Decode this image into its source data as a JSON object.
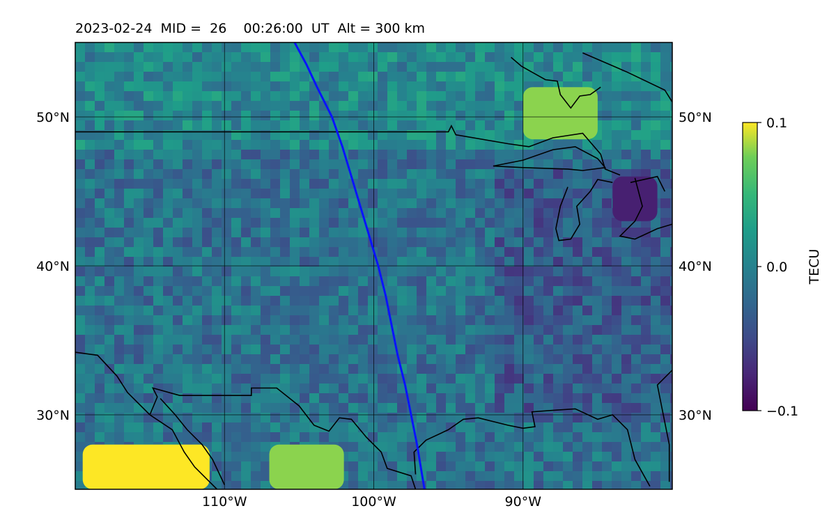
{
  "title": "2023-02-24  MID =  26    00:26:00  UT  Alt = 300 km",
  "chart_data": {
    "type": "heatmap",
    "xlim": [
      -120,
      -80
    ],
    "ylim": [
      25,
      55
    ],
    "lon_ticks": [
      {
        "value": -110,
        "label": "110°W"
      },
      {
        "value": -100,
        "label": "100°W"
      },
      {
        "value": -90,
        "label": "90°W"
      }
    ],
    "lat_ticks": [
      {
        "value": 50,
        "label": "50°N"
      },
      {
        "value": 40,
        "label": "40°N"
      },
      {
        "value": 30,
        "label": "30°N"
      }
    ],
    "grid": true,
    "colorbar": {
      "label": "TECU",
      "vmin": -0.1,
      "vmax": 0.1,
      "ticks": [
        {
          "value": 0.1,
          "label": "0.1"
        },
        {
          "value": 0.0,
          "label": "0.0"
        },
        {
          "value": -0.1,
          "label": "−0.1"
        }
      ],
      "colormap": "viridis"
    },
    "highlights": [
      {
        "region": "high values",
        "lon": [
          -119.5,
          -111
        ],
        "lat": [
          25,
          28
        ],
        "value": 0.1
      },
      {
        "region": "high values",
        "lon": [
          -107,
          -102
        ],
        "lat": [
          25,
          28
        ],
        "value": 0.08
      },
      {
        "region": "high values",
        "lon": [
          -90,
          -85
        ],
        "lat": [
          48.5,
          52
        ],
        "value": 0.08
      },
      {
        "region": "low values",
        "lon": [
          -84,
          -81
        ],
        "lat": [
          43,
          46
        ],
        "value": -0.08
      }
    ],
    "track": {
      "color": "#0a14ff",
      "points": [
        [
          -105.3,
          55
        ],
        [
          -104.5,
          53.5
        ],
        [
          -103.8,
          52
        ],
        [
          -102.8,
          50
        ],
        [
          -102.1,
          48
        ],
        [
          -101.5,
          46
        ],
        [
          -100.9,
          44
        ],
        [
          -100.3,
          42
        ],
        [
          -99.7,
          40
        ],
        [
          -99.2,
          38
        ],
        [
          -98.8,
          36
        ],
        [
          -98.4,
          34
        ],
        [
          -97.9,
          32
        ],
        [
          -97.5,
          30
        ],
        [
          -97.1,
          28
        ],
        [
          -96.6,
          25
        ]
      ]
    },
    "coastline_color": "#000000"
  }
}
